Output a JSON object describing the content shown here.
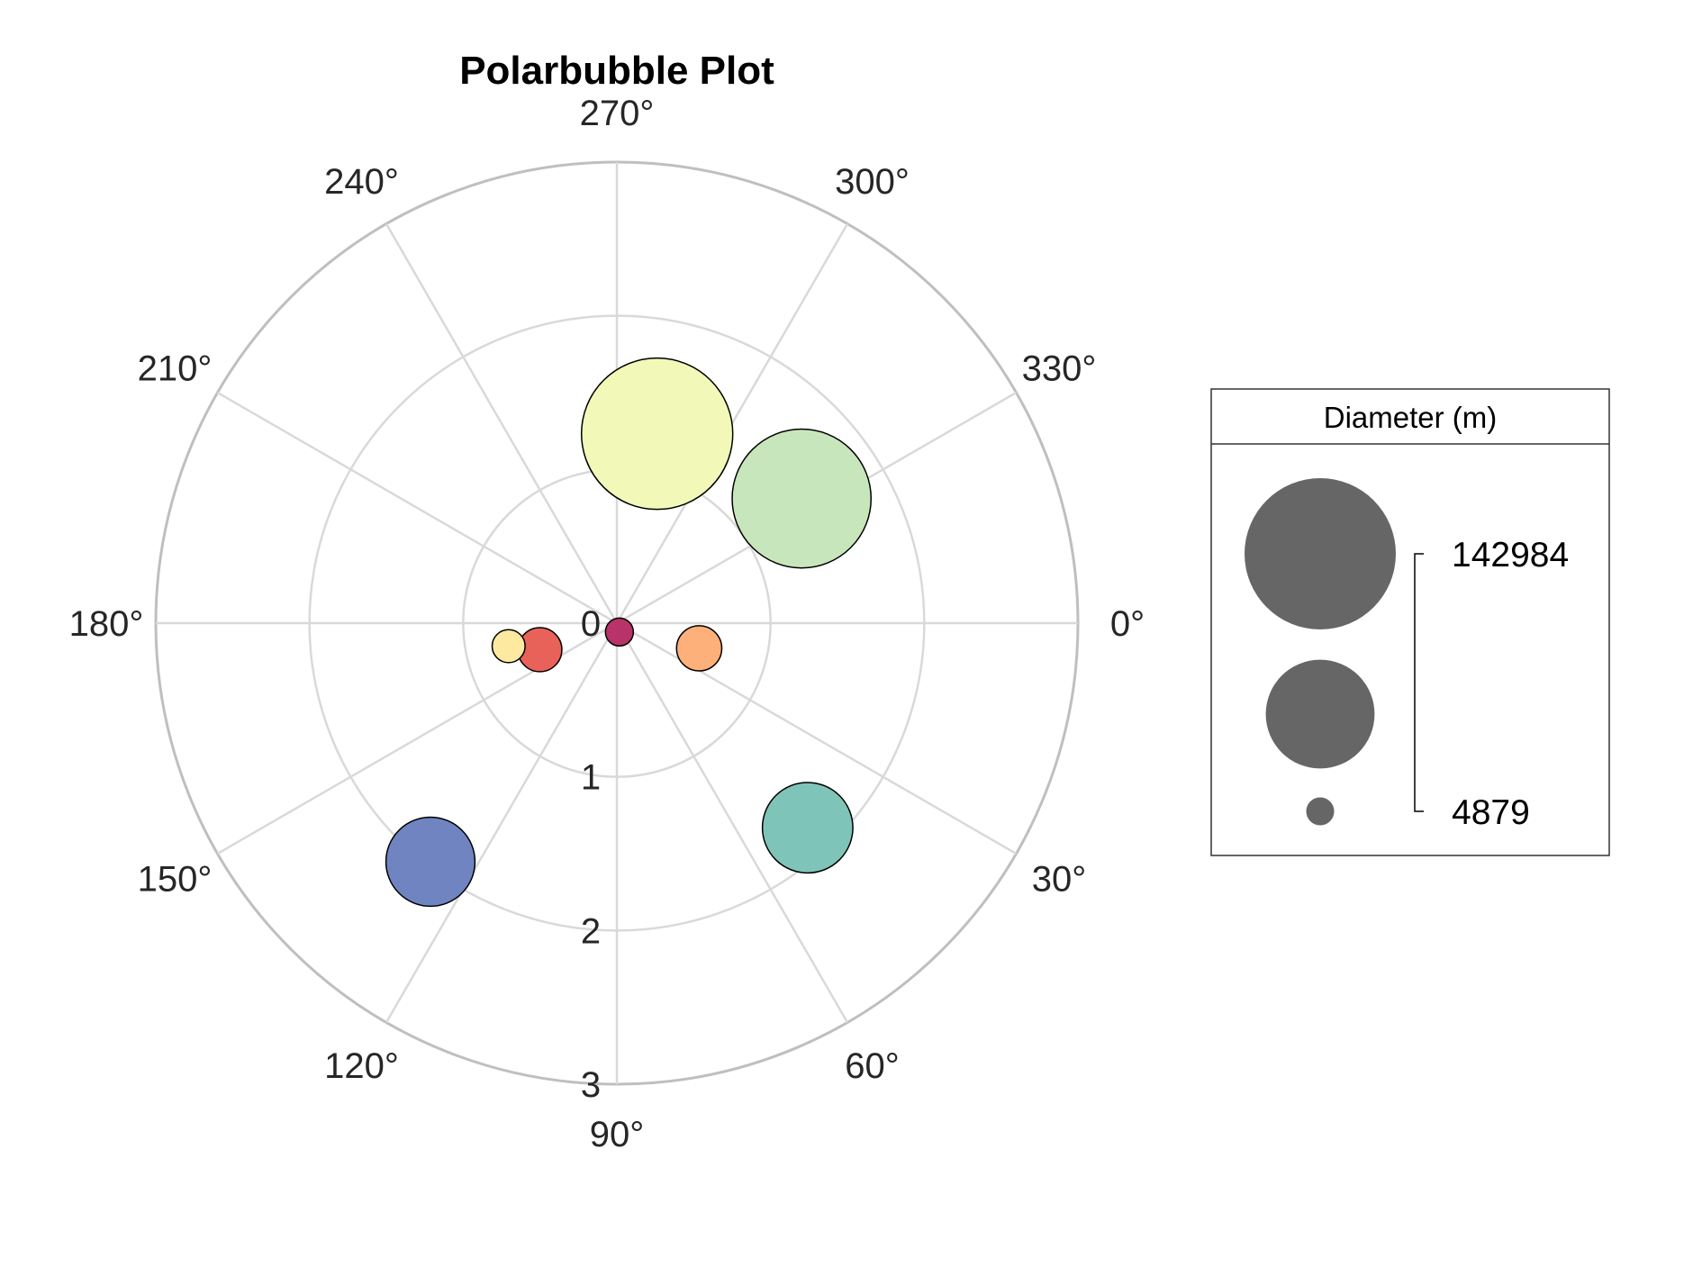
{
  "chart_data": {
    "type": "scatter",
    "subtype": "polar-bubble",
    "title": "Polarbubble Plot",
    "theta_direction": "clockwise",
    "theta_zero": "right",
    "theta_ticks": [
      0,
      30,
      60,
      90,
      120,
      150,
      180,
      210,
      240,
      270,
      300,
      330
    ],
    "theta_tick_labels": [
      "0°",
      "30°",
      "60°",
      "90°",
      "120°",
      "150°",
      "180°",
      "210°",
      "240°",
      "270°",
      "300°",
      "330°"
    ],
    "rlim": [
      0,
      3
    ],
    "r_ticks": [
      0,
      1,
      2,
      3
    ],
    "r_tick_labels": [
      "0",
      "1",
      "2",
      "3"
    ],
    "grid": true,
    "points": [
      {
        "theta": 74,
        "r": 0.06,
        "diameter": 4879,
        "color": "#b8336a"
      },
      {
        "theta": 161,
        "r": 0.53,
        "diameter": 12104,
        "color": "#e8625a"
      },
      {
        "theta": 17,
        "r": 0.56,
        "diameter": 12756,
        "color": "#fdb07a"
      },
      {
        "theta": 168,
        "r": 0.72,
        "diameter": 6792,
        "color": "#fde9a0"
      },
      {
        "theta": 282,
        "r": 1.26,
        "diameter": 142984,
        "color": "#f2f9b8"
      },
      {
        "theta": 326,
        "r": 1.45,
        "diameter": 120536,
        "color": "#c8e6bb"
      },
      {
        "theta": 47,
        "r": 1.82,
        "diameter": 51118,
        "color": "#7fc4b8"
      },
      {
        "theta": 128,
        "r": 1.97,
        "diameter": 49528,
        "color": "#6f84c0"
      }
    ],
    "legend": {
      "title": "Diameter (m)",
      "placement": "right",
      "max_label": "142984",
      "min_label": "4879",
      "sizes": [
        142984,
        73931,
        4879
      ],
      "color": "#666666"
    }
  }
}
